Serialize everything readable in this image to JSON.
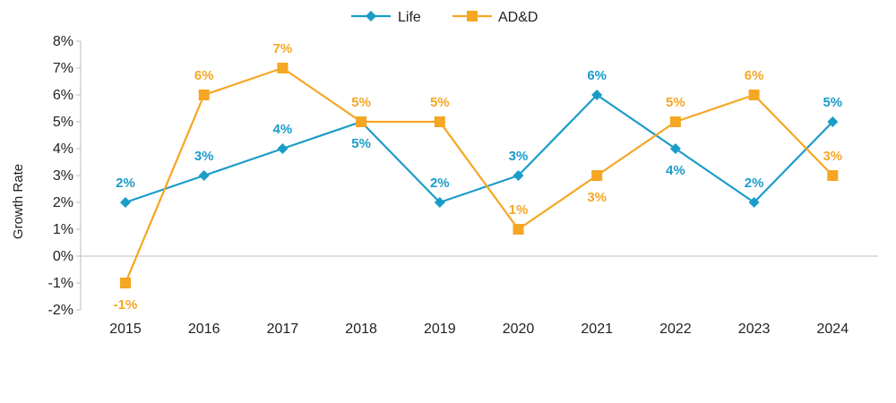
{
  "chart_data": {
    "type": "line",
    "title": "",
    "xlabel": "",
    "ylabel": "Growth Rate",
    "categories": [
      "2015",
      "2016",
      "2017",
      "2018",
      "2019",
      "2020",
      "2021",
      "2022",
      "2023",
      "2024"
    ],
    "y_ticks": [
      "-2%",
      "-1%",
      "0%",
      "1%",
      "2%",
      "3%",
      "4%",
      "5%",
      "6%",
      "7%",
      "8%"
    ],
    "ylim": [
      -2,
      8
    ],
    "legend_position": "top-center",
    "series": [
      {
        "name": "Life",
        "color": "#1a9cc9",
        "marker": "diamond",
        "values": [
          2,
          3,
          4,
          5,
          2,
          3,
          6,
          4,
          2,
          5
        ],
        "labels": [
          "2%",
          "3%",
          "4%",
          "5%",
          "2%",
          "3%",
          "6%",
          "4%",
          "2%",
          "5%"
        ],
        "label_pos": [
          "above",
          "above",
          "above",
          "below",
          "above",
          "above",
          "above",
          "below",
          "above",
          "above"
        ]
      },
      {
        "name": "AD&D",
        "color": "#f5a623",
        "marker": "square",
        "values": [
          -1,
          6,
          7,
          5,
          5,
          1,
          3,
          5,
          6,
          3
        ],
        "labels": [
          "-1%",
          "6%",
          "7%",
          "5%",
          "5%",
          "1%",
          "3%",
          "5%",
          "6%",
          "3%"
        ],
        "label_pos": [
          "below",
          "above",
          "above",
          "above",
          "above",
          "above",
          "below",
          "above",
          "above",
          "above"
        ]
      }
    ]
  }
}
